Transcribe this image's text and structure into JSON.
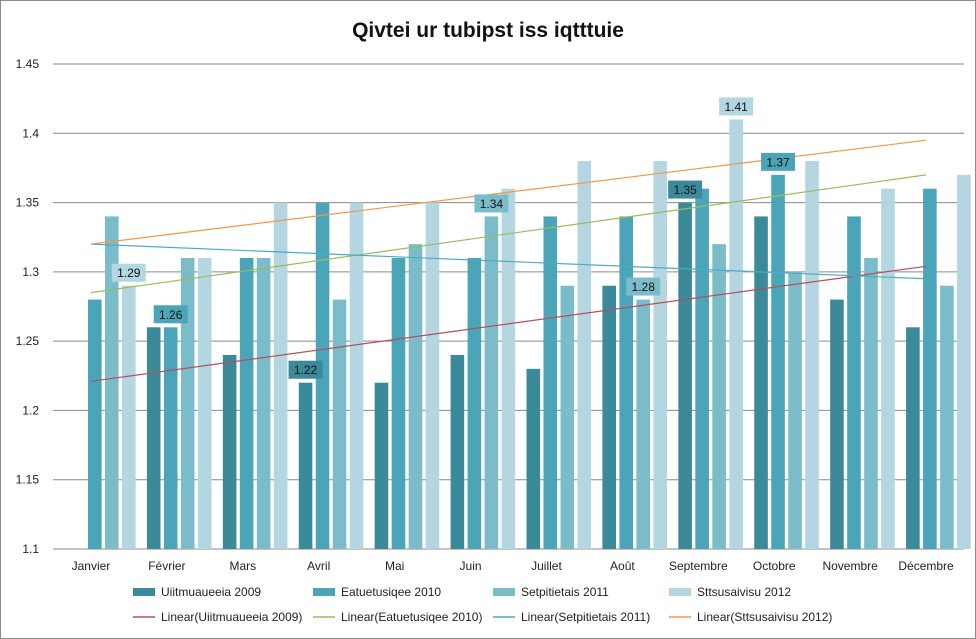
{
  "chart_data": {
    "type": "bar",
    "title": "Qivtei ur tubipst iss iqtttuie",
    "xlabel": "",
    "ylabel": "",
    "ylim": [
      1.1,
      1.45
    ],
    "y_ticks": [
      "1.1",
      "1.15",
      "1.2",
      "1.25",
      "1.3",
      "1.35",
      "1.4",
      "1.45"
    ],
    "y_tick_values": [
      1.1,
      1.15,
      1.2,
      1.25,
      1.3,
      1.35,
      1.4,
      1.45
    ],
    "grid": true,
    "legend_position": "bottom",
    "categories": [
      "Janvier",
      "Février",
      "Mars",
      "Avril",
      "Mai",
      "Juin",
      "Juillet",
      "Août",
      "Septembre",
      "Octobre",
      "Novembre",
      "Décembre"
    ],
    "series": [
      {
        "name": "Uiitmuaueeia 2009",
        "color": "#3b8a9a",
        "values": [
          null,
          1.26,
          1.24,
          1.22,
          1.22,
          1.24,
          1.23,
          1.29,
          1.35,
          1.34,
          1.28,
          1.26
        ]
      },
      {
        "name": "Eatuetusiqee 2010",
        "color": "#4aa5b8",
        "values": [
          1.28,
          1.26,
          1.31,
          1.35,
          1.31,
          1.31,
          1.34,
          1.34,
          1.36,
          1.37,
          1.34,
          1.36
        ]
      },
      {
        "name": "Setpitietais 2011",
        "color": "#7bbccb",
        "values": [
          1.34,
          1.31,
          1.31,
          1.28,
          1.32,
          1.34,
          1.29,
          1.28,
          1.32,
          1.3,
          1.31,
          1.29
        ]
      },
      {
        "name": "Sttsusaivisu 2012",
        "color": "#b4d6e0",
        "values": [
          1.29,
          1.31,
          1.35,
          1.35,
          1.35,
          1.36,
          1.38,
          1.38,
          1.41,
          1.38,
          1.36,
          1.37
        ]
      }
    ],
    "trendlines": [
      {
        "name": "Linear(Uiitmuaueeia 2009)",
        "color": "#b5505a",
        "start": 1.221,
        "end": 1.304
      },
      {
        "name": "Linear(Eatuetusiqee 2010)",
        "color": "#9bbb59",
        "start": 1.285,
        "end": 1.37
      },
      {
        "name": "Linear(Setpitietais 2011)",
        "color": "#4bacc6",
        "start": 1.32,
        "end": 1.295
      },
      {
        "name": "Linear(Sttsusaivisu 2012)",
        "color": "#f79646",
        "start": 1.32,
        "end": 1.395
      }
    ],
    "data_labels": [
      {
        "text": "1.29",
        "category": 0,
        "series": 3,
        "value": 1.29
      },
      {
        "text": "1.26",
        "category": 1,
        "series": 1,
        "value": 1.26
      },
      {
        "text": "1.22",
        "category": 3,
        "series": 0,
        "value": 1.22
      },
      {
        "text": "1.34",
        "category": 5,
        "series": 2,
        "value": 1.34
      },
      {
        "text": "1.28",
        "category": 7,
        "series": 2,
        "value": 1.28
      },
      {
        "text": "1.41",
        "category": 8,
        "series": 3,
        "value": 1.41
      },
      {
        "text": "1.35",
        "category": 8,
        "series": 0,
        "value": 1.35
      },
      {
        "text": "1.37",
        "category": 9,
        "series": 1,
        "value": 1.37
      }
    ]
  }
}
